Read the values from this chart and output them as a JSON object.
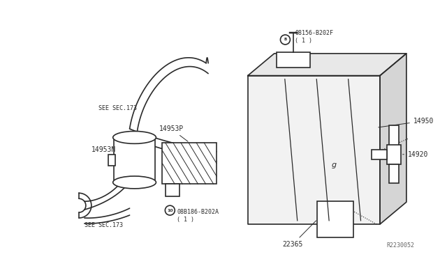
{
  "bg_color": "#ffffff",
  "line_color": "#2a2a2a",
  "text_color": "#2a2a2a",
  "ref_code": "R2230052",
  "lw": 1.2,
  "lw_thin": 0.8,
  "font_size": 7.0,
  "font_size_small": 6.0,
  "label_14950": "14950",
  "label_14920": "14920",
  "label_14953N": "14953N",
  "label_14953P": "14953P",
  "label_22365": "22365",
  "label_bolt1": "08156-B202F\n( 1 )",
  "label_bolt2": "08B186-B202A\n( 1 )",
  "label_sec173_top": "SEE SEC.173",
  "label_sec173_bot": "SEE SEC.173"
}
